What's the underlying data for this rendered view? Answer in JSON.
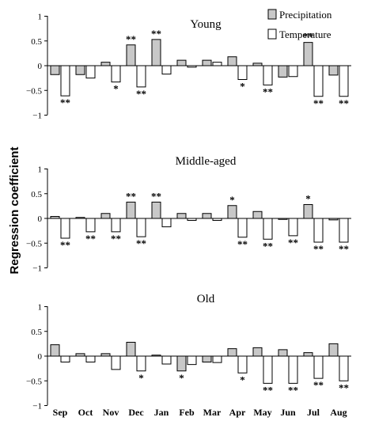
{
  "chart_data": {
    "type": "bar",
    "ylabel": "Regression coefficient",
    "categories": [
      "Sep",
      "Oct",
      "Nov",
      "Dec",
      "Jan",
      "Feb",
      "Mar",
      "Apr",
      "May",
      "Jun",
      "Jul",
      "Aug"
    ],
    "legend": {
      "placement": "top-right",
      "items": [
        {
          "name": "Precipitation",
          "color": "#c8c8c8"
        },
        {
          "name": "Temperature",
          "color": "#ffffff"
        }
      ]
    },
    "ylim": [
      -1,
      1
    ],
    "yticks": [
      "1",
      "0.5",
      "0",
      "−0.5",
      "−1"
    ],
    "panels": [
      {
        "title": "Young",
        "series": [
          {
            "name": "Precipitation",
            "values": [
              -0.18,
              -0.18,
              0.07,
              0.42,
              0.53,
              0.11,
              0.11,
              0.18,
              0.05,
              -0.23,
              0.47,
              -0.19
            ],
            "sig": [
              "",
              "",
              "",
              "**",
              "**",
              "",
              "",
              "",
              "",
              "",
              "**",
              ""
            ]
          },
          {
            "name": "Temperature",
            "values": [
              -0.61,
              -0.25,
              -0.33,
              -0.43,
              -0.17,
              -0.03,
              0.07,
              -0.28,
              -0.39,
              -0.22,
              -0.62,
              -0.62
            ],
            "sig": [
              "**",
              "",
              "*",
              "**",
              "",
              "",
              "",
              "*",
              "**",
              "",
              "**",
              "**"
            ]
          }
        ]
      },
      {
        "title": "Middle-aged",
        "series": [
          {
            "name": "Precipitation",
            "values": [
              0.04,
              0.02,
              0.1,
              0.33,
              0.33,
              0.1,
              0.1,
              0.26,
              0.14,
              -0.02,
              0.28,
              -0.03
            ],
            "sig": [
              "",
              "",
              "",
              "**",
              "**",
              "",
              "",
              "*",
              "",
              "",
              "*",
              ""
            ]
          },
          {
            "name": "Temperature",
            "values": [
              -0.4,
              -0.27,
              -0.27,
              -0.37,
              -0.17,
              -0.04,
              -0.04,
              -0.38,
              -0.42,
              -0.35,
              -0.48,
              -0.48
            ],
            "sig": [
              "**",
              "**",
              "**",
              "**",
              "",
              "",
              "",
              "**",
              "**",
              "**",
              "**",
              "**"
            ]
          }
        ]
      },
      {
        "title": "Old",
        "series": [
          {
            "name": "Precipitation",
            "values": [
              0.23,
              0.05,
              0.05,
              0.28,
              0.02,
              -0.3,
              -0.12,
              0.15,
              0.17,
              0.13,
              0.07,
              0.25
            ],
            "sig": [
              "",
              "",
              "",
              "",
              "",
              "*",
              "",
              "",
              "",
              "",
              "",
              ""
            ]
          },
          {
            "name": "Temperature",
            "values": [
              -0.12,
              -0.12,
              -0.27,
              -0.3,
              -0.16,
              -0.17,
              -0.13,
              -0.34,
              -0.55,
              -0.55,
              -0.45,
              -0.5
            ],
            "sig": [
              "",
              "",
              "",
              "*",
              "",
              "",
              "",
              "*",
              "**",
              "**",
              "**",
              "**"
            ]
          }
        ]
      }
    ]
  }
}
